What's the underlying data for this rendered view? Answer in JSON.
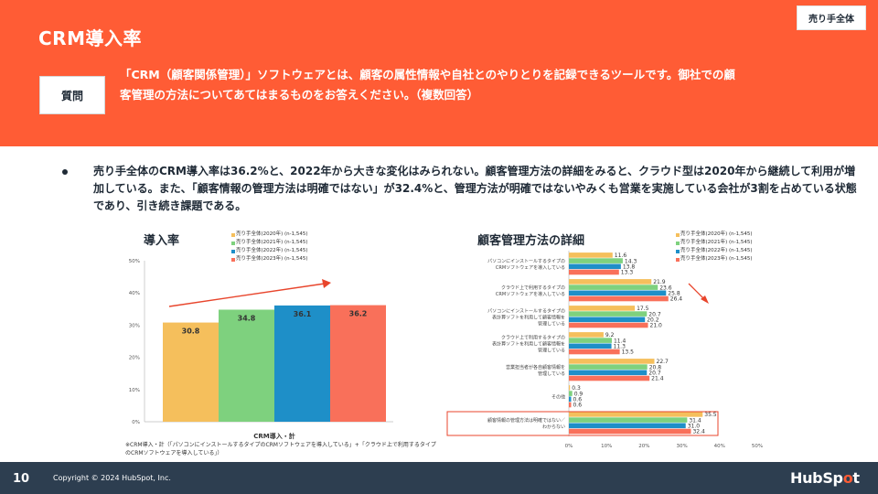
{
  "header": {
    "title": "CRM導入率",
    "audience_tag": "売り手全体",
    "question_label": "質問",
    "question_text": "「CRM（顧客関係管理）」ソフトウェアとは、顧客の属性情報や自社とのやりとりを記録できるツールです。御社での顧客管理の方法についてあてはまるものをお答えください。（複数回答）"
  },
  "summary": {
    "bullet": "売り手全体のCRM導入率は36.2%と、2022年から大きな変化はみられない。顧客管理方法の詳細をみると、クラウド型は2020年から継続して利用が増加している。また、「顧客情報の管理方法は明確ではない」が32.4%と、管理方法が明確ではないやみくも営業を実施している会社が3割を占めている状態であり、引き続き課題である。"
  },
  "legend": [
    {
      "label": "売り手全体(2020年) (n-1,545)",
      "color": "#f5bf5c"
    },
    {
      "label": "売り手全体(2021年) (n-1,545)",
      "color": "#7ed17e"
    },
    {
      "label": "売り手全体(2022年) (n-1,545)",
      "color": "#1e8fc8"
    },
    {
      "label": "売り手全体(2023年) (n-1,545)",
      "color": "#f9705a"
    }
  ],
  "footnote": "※CRM導入・計（「パソコンにインストールするタイプのCRMソフトウェアを導入している」+「クラウド上で利用するタイプのCRMソフトウェアを導入している」）",
  "footer": {
    "page_number": "10",
    "copyright": "Copyright © 2024 HubSpot, Inc.",
    "brand_pre": "HubSp",
    "brand_dot": "o",
    "brand_post": "t"
  },
  "chart_data": [
    {
      "type": "bar",
      "title": "導入率",
      "xlabel": "CRM導入・計",
      "ylabel": "",
      "ylim": [
        0,
        50
      ],
      "yticks": [
        "0%",
        "10%",
        "20%",
        "30%",
        "40%",
        "50%"
      ],
      "series": [
        {
          "name": "売り手全体(2020年) (n-1,545)",
          "values": [
            30.8
          ]
        },
        {
          "name": "売り手全体(2021年) (n-1,545)",
          "values": [
            34.8
          ]
        },
        {
          "name": "売り手全体(2022年) (n-1,545)",
          "values": [
            36.1
          ]
        },
        {
          "name": "売り手全体(2023年) (n-1,545)",
          "values": [
            36.2
          ]
        }
      ],
      "data_labels": [
        "30.8",
        "34.8",
        "36.1",
        "36.2"
      ],
      "grid": false,
      "legend_position": "top"
    },
    {
      "type": "bar",
      "orientation": "horizontal",
      "title": "顧客管理方法の詳細",
      "xlim": [
        0,
        50
      ],
      "xticks": [
        "0%",
        "10%",
        "20%",
        "30%",
        "40%",
        "50%"
      ],
      "categories": [
        [
          "パソコンにインストールするタイプの",
          "CRMソフトウェアを導入している"
        ],
        [
          "クラウド上で利用するタイプの",
          "CRMソフトウェアを導入している"
        ],
        [
          "パソコンにインストールするタイプの",
          "表計算ソフトを利用して顧客情報を",
          "管理している"
        ],
        [
          "クラウド上で利用するタイプの",
          "表計算ソフトを利用して顧客情報を",
          "管理している"
        ],
        [
          "営業担当者が各自顧客情報を",
          "管理している"
        ],
        [
          "その他"
        ],
        [
          "顧客情報の管理方法は明確ではない／",
          "わからない"
        ]
      ],
      "series": [
        {
          "name": "売り手全体(2020年) (n-1,545)",
          "values": [
            11.6,
            21.9,
            17.5,
            9.2,
            22.7,
            0.3,
            35.5
          ]
        },
        {
          "name": "売り手全体(2021年) (n-1,545)",
          "values": [
            14.3,
            23.6,
            20.7,
            11.4,
            20.8,
            0.9,
            31.4
          ]
        },
        {
          "name": "売り手全体(2022年) (n-1,545)",
          "values": [
            13.8,
            25.8,
            20.2,
            11.3,
            20.7,
            0.6,
            31.0
          ]
        },
        {
          "name": "売り手全体(2023年) (n-1,545)",
          "values": [
            13.3,
            26.4,
            21.0,
            13.5,
            21.4,
            0.6,
            32.4
          ]
        }
      ],
      "highlighted_category_index": 6,
      "grid": false,
      "legend_position": "top-right"
    }
  ]
}
